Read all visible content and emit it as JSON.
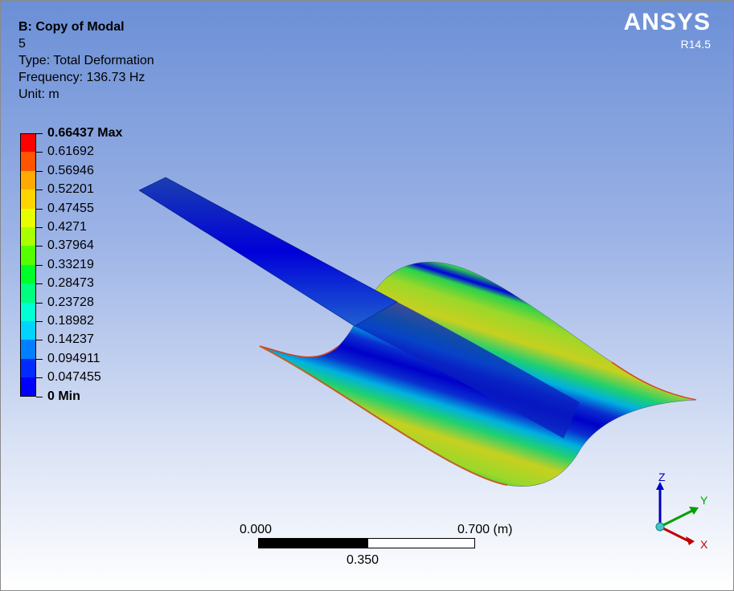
{
  "header": {
    "title": "B: Copy of Modal",
    "mode_number": "5",
    "type": "Type: Total Deformation",
    "frequency": "Frequency: 136.73 Hz",
    "unit": "Unit: m"
  },
  "logo": {
    "brand": "ANSYS",
    "version": "R14.5"
  },
  "legend": {
    "levels": [
      {
        "label": "0.66437 Max",
        "bold": true
      },
      {
        "label": "0.61692"
      },
      {
        "label": "0.56946"
      },
      {
        "label": "0.52201"
      },
      {
        "label": "0.47455"
      },
      {
        "label": "0.4271"
      },
      {
        "label": "0.37964"
      },
      {
        "label": "0.33219"
      },
      {
        "label": "0.28473"
      },
      {
        "label": "0.23728"
      },
      {
        "label": "0.18982"
      },
      {
        "label": "0.14237"
      },
      {
        "label": "0.094911"
      },
      {
        "label": "0.047455"
      },
      {
        "label": "0 Min",
        "bold": true
      }
    ],
    "colors": [
      "#ff0000",
      "#ff5500",
      "#ffaa00",
      "#ffd400",
      "#e6ff00",
      "#aaff00",
      "#55ff00",
      "#00ff2a",
      "#00ff80",
      "#00ffd4",
      "#00d4ff",
      "#0080ff",
      "#002bff",
      "#0000ff"
    ]
  },
  "scale_bar": {
    "left_label": "0.000",
    "right_label": "0.700 (m)",
    "mid_label": "0.350"
  },
  "triad": {
    "z_label": "Z",
    "y_label": "Y",
    "x_label": "X",
    "z_color": "#0000c0",
    "y_color": "#00a000",
    "x_color": "#c00000"
  }
}
